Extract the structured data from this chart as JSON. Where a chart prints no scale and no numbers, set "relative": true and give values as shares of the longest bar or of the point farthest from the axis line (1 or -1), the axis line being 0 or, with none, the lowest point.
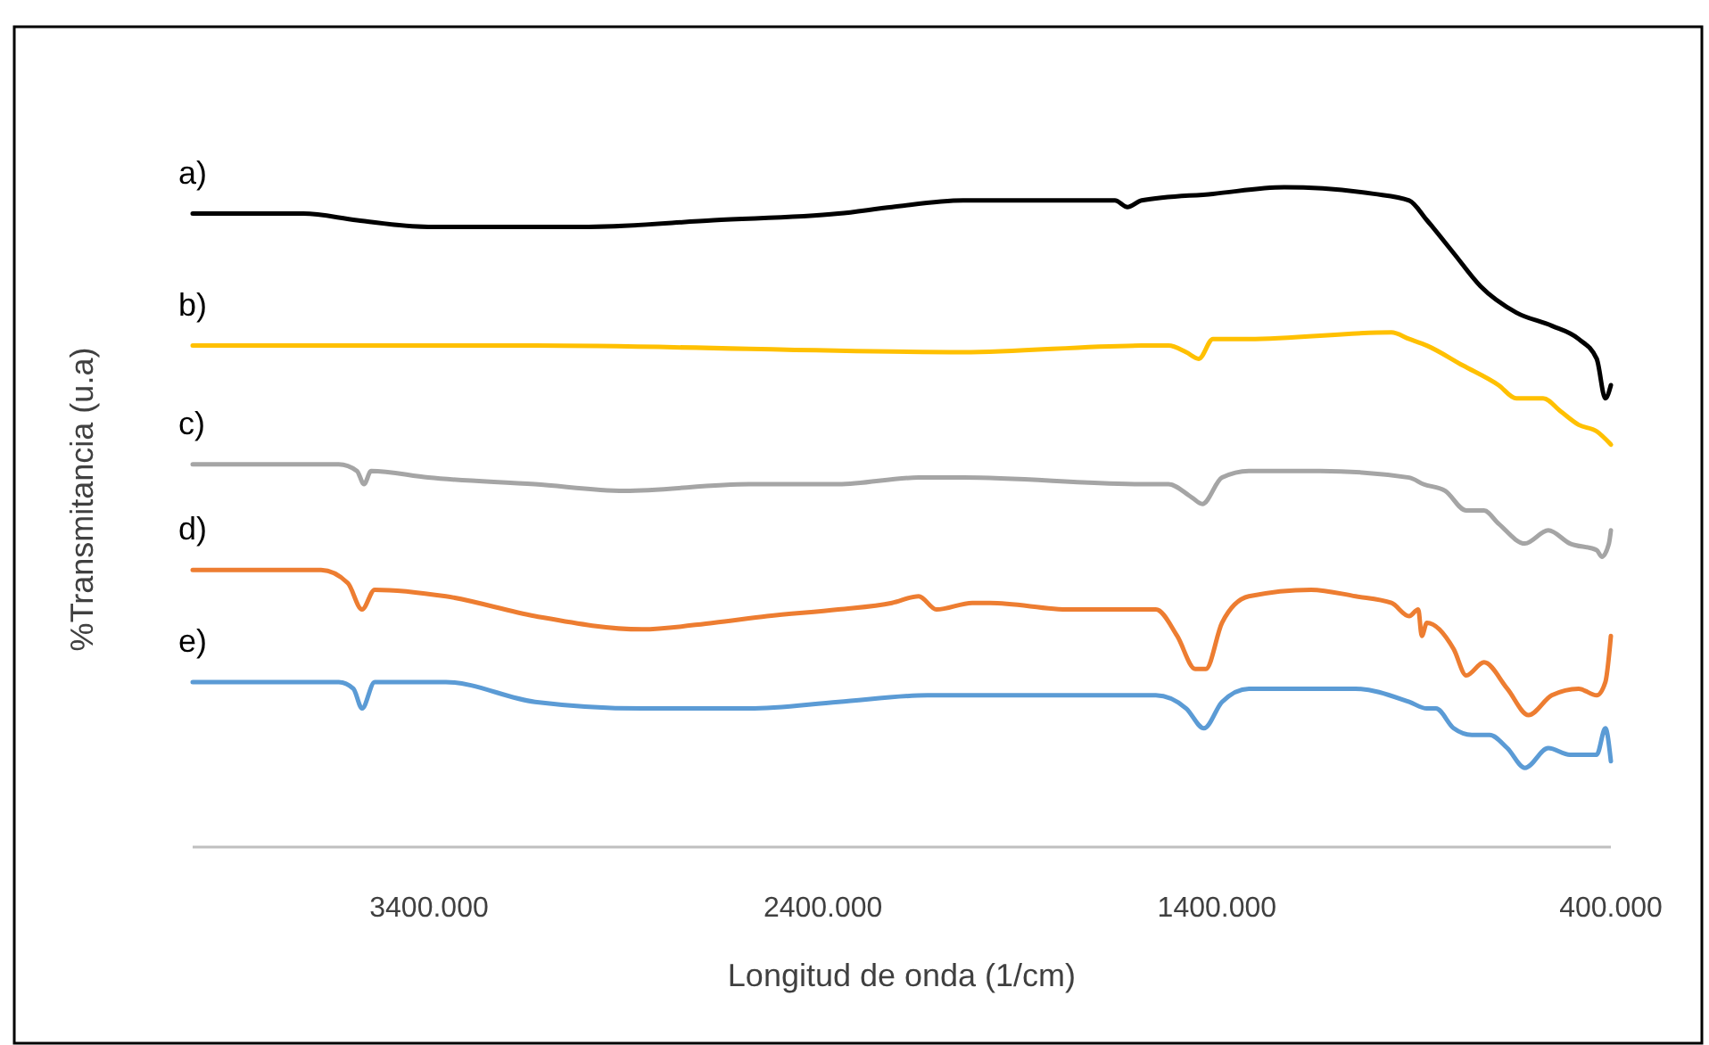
{
  "chart_data": {
    "type": "line",
    "xlabel": "Longitud de onda (1/cm)",
    "ylabel": "%Transmitancia (u.a)",
    "relative": true,
    "grid": false,
    "marker": "none",
    "line_style": "solid",
    "xlim": [
      4000,
      400
    ],
    "xticks": [
      {
        "value": 3400,
        "label": "3400.000"
      },
      {
        "value": 2400,
        "label": "2400.000"
      },
      {
        "value": 1400,
        "label": "1400.000"
      },
      {
        "value": 400,
        "label": "400.000"
      }
    ],
    "series": [
      {
        "name": "a)",
        "color": "#000000",
        "x": [
          4000,
          3719,
          3583,
          3402,
          3221,
          2995,
          2678,
          2361,
          2225,
          2044,
          1772,
          1659,
          1627,
          1591,
          1410,
          1229,
          1002,
          912,
          867,
          799,
          731,
          640,
          550,
          482,
          436,
          414,
          400
        ],
        "values": [
          0.96,
          0.96,
          0.95,
          0.94,
          0.94,
          0.94,
          0.95,
          0.96,
          0.97,
          0.98,
          0.98,
          0.98,
          0.97,
          0.98,
          0.99,
          1.0,
          0.99,
          0.98,
          0.95,
          0.9,
          0.85,
          0.81,
          0.79,
          0.77,
          0.74,
          0.68,
          0.7
        ]
      },
      {
        "name": "b)",
        "color": "#ffc000",
        "x": [
          4000,
          3131,
          2044,
          1591,
          1523,
          1478,
          1446,
          1410,
          1319,
          957,
          912,
          867,
          776,
          685,
          640,
          572,
          527,
          482,
          436,
          400
        ],
        "values": [
          0.76,
          0.76,
          0.75,
          0.76,
          0.76,
          0.75,
          0.74,
          0.77,
          0.77,
          0.78,
          0.77,
          0.76,
          0.73,
          0.7,
          0.68,
          0.68,
          0.66,
          0.64,
          0.63,
          0.61
        ]
      },
      {
        "name": "c)",
        "color": "#a5a5a5",
        "x": [
          4000,
          3629,
          3583,
          3565,
          3547,
          3402,
          3131,
          2904,
          2587,
          2361,
          2157,
          2044,
          1591,
          1523,
          1464,
          1437,
          1387,
          1319,
          1138,
          912,
          876,
          821,
          767,
          722,
          685,
          618,
          559,
          504,
          436,
          423,
          405,
          400
        ],
        "values": [
          0.58,
          0.58,
          0.57,
          0.55,
          0.57,
          0.56,
          0.55,
          0.54,
          0.55,
          0.55,
          0.56,
          0.56,
          0.55,
          0.55,
          0.53,
          0.52,
          0.56,
          0.57,
          0.57,
          0.56,
          0.55,
          0.54,
          0.51,
          0.51,
          0.49,
          0.46,
          0.48,
          0.46,
          0.45,
          0.44,
          0.46,
          0.48
        ]
      },
      {
        "name": "d)",
        "color": "#ed7d31",
        "x": [
          4000,
          3674,
          3606,
          3570,
          3538,
          3357,
          3131,
          2859,
          2678,
          2542,
          2361,
          2225,
          2157,
          2112,
          2021,
          1976,
          1772,
          1555,
          1501,
          1455,
          1428,
          1387,
          1319,
          1161,
          1048,
          957,
          912,
          889,
          880,
          867,
          799,
          767,
          722,
          663,
          609,
          550,
          482,
          436,
          414,
          400
        ],
        "values": [
          0.42,
          0.42,
          0.4,
          0.36,
          0.39,
          0.38,
          0.35,
          0.33,
          0.34,
          0.35,
          0.36,
          0.37,
          0.38,
          0.36,
          0.37,
          0.37,
          0.36,
          0.36,
          0.32,
          0.27,
          0.27,
          0.34,
          0.38,
          0.39,
          0.38,
          0.37,
          0.35,
          0.36,
          0.32,
          0.34,
          0.3,
          0.26,
          0.28,
          0.24,
          0.2,
          0.23,
          0.24,
          0.23,
          0.25,
          0.32
        ]
      },
      {
        "name": "e)",
        "color": "#5b9bd5",
        "x": [
          4000,
          3629,
          3592,
          3570,
          3538,
          3357,
          3131,
          2859,
          2587,
          2361,
          2135,
          2021,
          1772,
          1555,
          1478,
          1433,
          1387,
          1319,
          1048,
          912,
          867,
          844,
          799,
          753,
          708,
          663,
          618,
          559,
          504,
          436,
          414,
          400
        ],
        "values": [
          0.25,
          0.25,
          0.24,
          0.21,
          0.25,
          0.25,
          0.22,
          0.21,
          0.21,
          0.22,
          0.23,
          0.23,
          0.23,
          0.23,
          0.21,
          0.18,
          0.22,
          0.24,
          0.24,
          0.22,
          0.21,
          0.21,
          0.18,
          0.17,
          0.17,
          0.15,
          0.12,
          0.15,
          0.14,
          0.14,
          0.18,
          0.13
        ]
      }
    ]
  }
}
